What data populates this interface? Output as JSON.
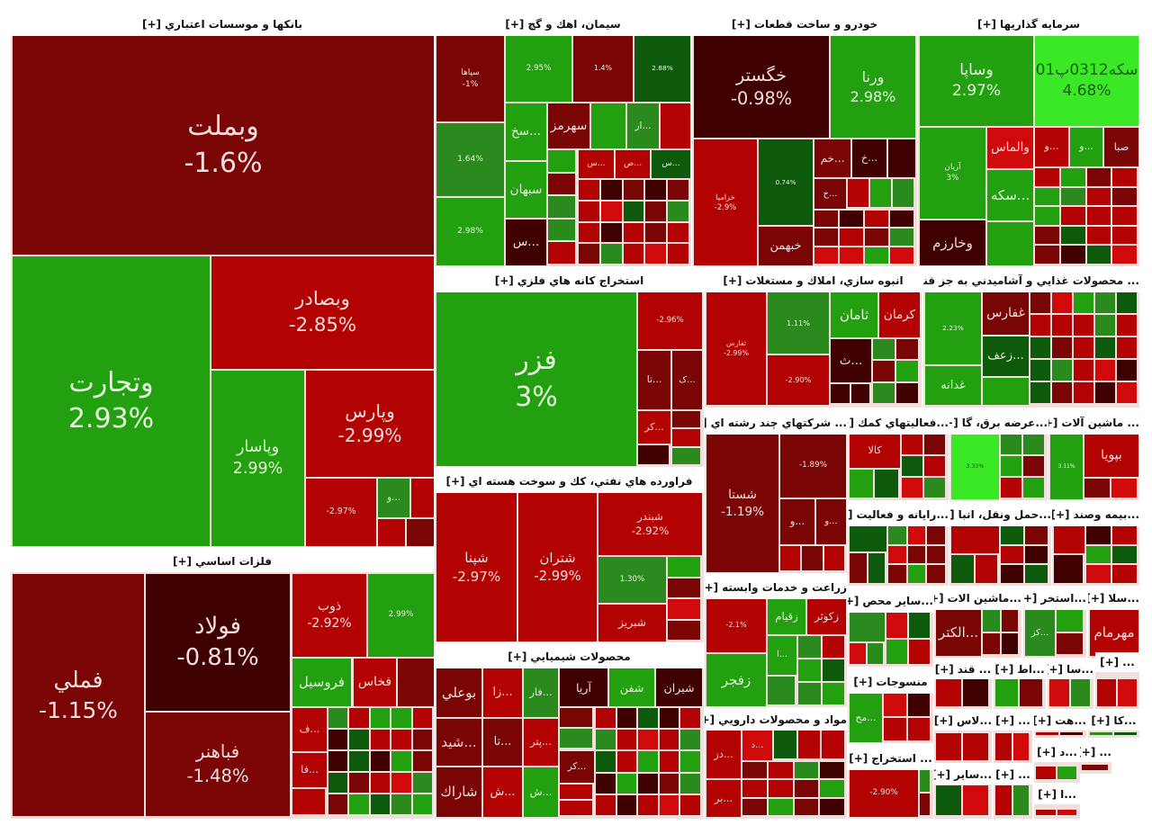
{
  "expand_label": "[+]",
  "colors": {
    "dred": "#7a0505",
    "vdark": "#3f0000",
    "red": "#b30202",
    "bred": "#d00a0a",
    "green": "#22a010",
    "dgreen": "#0d5a0d",
    "mgreen": "#2a8a1e",
    "bgreen": "#3ae826"
  },
  "chart_data": {
    "type": "treemap",
    "title": "",
    "sectors": [
      {
        "title": "بانكها و موسسات اعتباري",
        "tiles": [
          {
            "label": "وبملت",
            "pct": "-1.6%",
            "color": "dred"
          },
          {
            "label": "وتجارت",
            "pct": "2.93%",
            "color": "green"
          },
          {
            "label": "وبصادر",
            "pct": "-2.85%",
            "color": "red"
          },
          {
            "label": "وپاسار",
            "pct": "2.99%",
            "color": "green"
          },
          {
            "label": "وپارس",
            "pct": "-2.99%",
            "color": "red"
          },
          {
            "label": "",
            "pct": "-2.97%",
            "color": "red"
          },
          {
            "label": "...و",
            "pct": "",
            "color": "mgreen"
          },
          {
            "label": "",
            "pct": "",
            "color": "red"
          },
          {
            "label": "",
            "pct": "",
            "color": "red"
          },
          {
            "label": "",
            "pct": "",
            "color": "dred"
          }
        ]
      },
      {
        "title": "فلزات اساسي",
        "tiles": [
          {
            "label": "فملي",
            "pct": "-1.15%",
            "color": "dred"
          },
          {
            "label": "فولاد",
            "pct": "-0.81%",
            "color": "vdark"
          },
          {
            "label": "فباهنر",
            "pct": "-1.48%",
            "color": "dred"
          },
          {
            "label": "ذوب",
            "pct": "-2.92%",
            "color": "red"
          },
          {
            "label": "",
            "pct": "2.99%",
            "color": "green"
          },
          {
            "label": "فروسيل",
            "pct": "",
            "color": "green"
          },
          {
            "label": "فخاس",
            "pct": "",
            "color": "red"
          },
          {
            "label": "",
            "pct": "",
            "color": "dred"
          },
          {
            "label": "...ف",
            "pct": "",
            "color": "red"
          },
          {
            "label": "...فا",
            "pct": "",
            "color": "red"
          }
        ]
      },
      {
        "title": "سيمان، اهك و گچ",
        "tiles": [
          {
            "label": "سپاها",
            "pct": "-1%",
            "color": "dred"
          },
          {
            "label": "",
            "pct": "1.64%",
            "color": "mgreen"
          },
          {
            "label": "",
            "pct": "2.98%",
            "color": "green"
          },
          {
            "label": "",
            "pct": "2.95%",
            "color": "green"
          },
          {
            "label": "",
            "pct": "1.4%",
            "color": "dred"
          },
          {
            "label": "",
            "pct": "2.88%",
            "color": "dgreen"
          },
          {
            "label": "...سخ",
            "pct": "",
            "color": "green"
          },
          {
            "label": "سبهان",
            "pct": "",
            "color": "green"
          },
          {
            "label": "...س",
            "pct": "",
            "color": "vdark"
          },
          {
            "label": "سهرمز",
            "pct": "",
            "color": "dred"
          },
          {
            "label": "",
            "pct": "",
            "color": "green"
          },
          {
            "label": "...ار",
            "pct": "",
            "color": "mgreen"
          },
          {
            "label": "",
            "pct": "",
            "color": "red"
          },
          {
            "label": "...س",
            "pct": "",
            "color": "red"
          },
          {
            "label": "...ص",
            "pct": "",
            "color": "red"
          },
          {
            "label": "...س",
            "pct": "",
            "color": "dgreen"
          }
        ]
      },
      {
        "title": "خودرو و ساخت قطعات",
        "tiles": [
          {
            "label": "خگستر",
            "pct": "-0.98%",
            "color": "vdark"
          },
          {
            "label": "ورنا",
            "pct": "2.98%",
            "color": "green"
          },
          {
            "label": "خزامیا",
            "pct": "-2.9%",
            "color": "red"
          },
          {
            "label": "",
            "pct": "0.74%",
            "color": "dgreen"
          },
          {
            "label": "خبهمن",
            "pct": "",
            "color": "dred"
          },
          {
            "label": "...خم",
            "pct": "",
            "color": "dred"
          },
          {
            "label": "...خ",
            "pct": "",
            "color": "vdark"
          },
          {
            "label": "",
            "pct": "",
            "color": "vdark"
          },
          {
            "label": "...خ",
            "pct": "",
            "color": "dred"
          }
        ]
      },
      {
        "title": "سرمايه گذاريها",
        "tiles": [
          {
            "label": "وساپا",
            "pct": "2.97%",
            "color": "green"
          },
          {
            "label": "سكه0312پ01",
            "pct": "4.68%",
            "color": "bgreen"
          },
          {
            "label": "آریان",
            "pct": "3%",
            "color": "green"
          },
          {
            "label": "وخارزم",
            "pct": "",
            "color": "vdark"
          },
          {
            "label": "والماس",
            "pct": "",
            "color": "bred"
          },
          {
            "label": "...سكه",
            "pct": "",
            "color": "green"
          },
          {
            "label": "",
            "pct": "",
            "color": "green"
          },
          {
            "label": "...و",
            "pct": "",
            "color": "red"
          },
          {
            "label": "...و",
            "pct": "",
            "color": "green"
          },
          {
            "label": "صبا",
            "pct": "",
            "color": "dred"
          }
        ]
      },
      {
        "title": "استخراج كانه هاي فلزي",
        "tiles": [
          {
            "label": "فزر",
            "pct": "3%",
            "color": "green"
          },
          {
            "label": "",
            "pct": "-2.96%",
            "color": "red"
          },
          {
            "label": "...تا",
            "pct": "",
            "color": "dred"
          },
          {
            "label": "...ک",
            "pct": "",
            "color": "dred"
          },
          {
            "label": "...کر",
            "pct": "",
            "color": "red"
          }
        ]
      },
      {
        "title": "فراورده هاي نفتي، كك و سوخت هسته اي",
        "tiles": [
          {
            "label": "شپنا",
            "pct": "-2.97%",
            "color": "red"
          },
          {
            "label": "شتران",
            "pct": "-2.99%",
            "color": "red"
          },
          {
            "label": "شبندر",
            "pct": "-2.92%",
            "color": "red"
          },
          {
            "label": "",
            "pct": "1.30%",
            "color": "mgreen"
          },
          {
            "label": "شبريز",
            "pct": "",
            "color": "red"
          }
        ]
      },
      {
        "title": "محصولات شيميايي",
        "tiles": [
          {
            "label": "بوعلي",
            "pct": "",
            "color": "dred"
          },
          {
            "label": "...شيد",
            "pct": "",
            "color": "dred"
          },
          {
            "label": "شاراك",
            "pct": "",
            "color": "dred"
          },
          {
            "label": "...زا",
            "pct": "",
            "color": "red"
          },
          {
            "label": "...تا",
            "pct": "",
            "color": "dred"
          },
          {
            "label": "...ش",
            "pct": "",
            "color": "red"
          },
          {
            "label": "...فار",
            "pct": "",
            "color": "mgreen"
          },
          {
            "label": "...پتر",
            "pct": "",
            "color": "red"
          },
          {
            "label": "...ش",
            "pct": "",
            "color": "green"
          },
          {
            "label": "آريا",
            "pct": "",
            "color": "vdark"
          },
          {
            "label": "شفن",
            "pct": "",
            "color": "green"
          },
          {
            "label": "شيران",
            "pct": "",
            "color": "vdark"
          },
          {
            "label": "...كر",
            "pct": "",
            "color": "dred"
          }
        ]
      },
      {
        "title": "انبوه سازي، املاك و مستغلات",
        "tiles": [
          {
            "label": "ثفارس",
            "pct": "-2.99%",
            "color": "red"
          },
          {
            "label": "",
            "pct": "1.11%",
            "color": "mgreen"
          },
          {
            "label": "",
            "pct": "-2.90%",
            "color": "red"
          },
          {
            "label": "ثامان",
            "pct": "",
            "color": "green"
          },
          {
            "label": "كرمان",
            "pct": "",
            "color": "red"
          },
          {
            "label": "...ث",
            "pct": "",
            "color": "vdark"
          }
        ]
      },
      {
        "title": "... محصولات غذايي و آشاميدني به جز قند",
        "tiles": [
          {
            "label": "",
            "pct": "2.23%",
            "color": "green"
          },
          {
            "label": "غدانه",
            "pct": "",
            "color": "green"
          },
          {
            "label": "غفارس",
            "pct": "",
            "color": "dred"
          },
          {
            "label": "...زعف",
            "pct": "",
            "color": "dgreen"
          },
          {
            "label": "",
            "pct": "",
            "color": "green"
          }
        ]
      },
      {
        "title": "... شركتهاي چند رشته اي",
        "tiles": [
          {
            "label": "شستا",
            "pct": "-1.19%",
            "color": "dred"
          },
          {
            "label": "",
            "pct": "-1.89%",
            "color": "dred"
          },
          {
            "label": "...و",
            "pct": "",
            "color": "dred"
          },
          {
            "label": "...و",
            "pct": "",
            "color": "dred"
          }
        ]
      },
      {
        "title": "...فعاليتهاي كمك",
        "tiles": [
          {
            "label": "كالا",
            "pct": "",
            "color": "red"
          }
        ]
      },
      {
        "title": "...عرضه برق، گا",
        "tiles": [
          {
            "label": "",
            "pct": "3.32%",
            "color": "bgreen"
          }
        ]
      },
      {
        "title": "... ماشين آلات",
        "tiles": [
          {
            "label": "",
            "pct": "3.11%",
            "color": "green"
          },
          {
            "label": "بپویا",
            "pct": "",
            "color": "red"
          }
        ]
      },
      {
        "title": "...رايانه و فعاليت",
        "tiles": [
          {
            "label": "",
            "pct": "",
            "color": "dgreen"
          }
        ]
      },
      {
        "title": "...حمل ونقل، انبا",
        "tiles": [
          {
            "label": "",
            "pct": "",
            "color": "red"
          }
        ]
      },
      {
        "title": "...بيمه وصند",
        "tiles": [
          {
            "label": "",
            "pct": "",
            "color": "red"
          }
        ]
      },
      {
        "title": "زراعت و خدمات وابسته",
        "tiles": [
          {
            "label": "",
            "pct": "-2.1%",
            "color": "red"
          },
          {
            "label": "زقيام",
            "pct": "",
            "color": "green"
          },
          {
            "label": "زكوثر",
            "pct": "",
            "color": "red"
          },
          {
            "label": "زفجر",
            "pct": "",
            "color": "green"
          },
          {
            "label": "...ا",
            "pct": "",
            "color": "green"
          }
        ]
      },
      {
        "title": "مواد و محصولات دارويي",
        "tiles": [
          {
            "label": "...دز",
            "pct": "",
            "color": "red"
          },
          {
            "label": "...بر",
            "pct": "",
            "color": "red"
          },
          {
            "label": "...د",
            "pct": "",
            "color": "bred"
          }
        ]
      },
      {
        "title": "...ساير محص",
        "tiles": [
          {
            "label": "",
            "pct": "",
            "color": "mgreen"
          }
        ]
      },
      {
        "title": "منسوجات",
        "tiles": [
          {
            "label": "...مح",
            "pct": "",
            "color": "green"
          }
        ]
      },
      {
        "title": "... استخراج",
        "tiles": [
          {
            "label": "",
            "pct": "-2.90%",
            "color": "red"
          }
        ]
      },
      {
        "title": "...ماشين الات",
        "tiles": [
          {
            "label": "...الكتر",
            "pct": "",
            "color": "dred"
          }
        ]
      },
      {
        "title": "...استخر",
        "tiles": [
          {
            "label": "...كز",
            "pct": "",
            "color": "mgreen"
          }
        ]
      },
      {
        "title": "...سلا",
        "tiles": [
          {
            "label": "مهرمام",
            "pct": "",
            "color": "red"
          }
        ]
      },
      {
        "title": "... قند",
        "tiles": []
      },
      {
        "title": "...اط",
        "tiles": []
      },
      {
        "title": "...سا",
        "tiles": []
      },
      {
        "title": "...",
        "tiles": []
      },
      {
        "title": "...لاس",
        "tiles": []
      },
      {
        "title": "...",
        "tiles": []
      },
      {
        "title": "...هت",
        "tiles": []
      },
      {
        "title": "...كا",
        "tiles": []
      },
      {
        "title": "...ساير",
        "tiles": []
      },
      {
        "title": "...",
        "tiles": []
      },
      {
        "title": "...د",
        "tiles": []
      },
      {
        "title": "...",
        "tiles": []
      },
      {
        "title": "...ا",
        "tiles": []
      }
    ]
  }
}
